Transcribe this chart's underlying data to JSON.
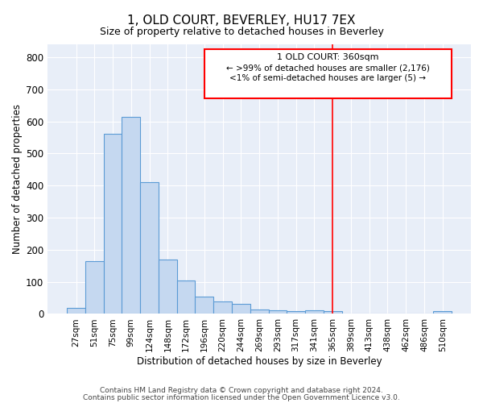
{
  "title": "1, OLD COURT, BEVERLEY, HU17 7EX",
  "subtitle": "Size of property relative to detached houses in Beverley",
  "xlabel": "Distribution of detached houses by size in Beverley",
  "ylabel": "Number of detached properties",
  "bar_color": "#c5d8f0",
  "bar_edge_color": "#5b9bd5",
  "background_color": "#e8eef8",
  "categories": [
    "27sqm",
    "51sqm",
    "75sqm",
    "99sqm",
    "124sqm",
    "148sqm",
    "172sqm",
    "196sqm",
    "220sqm",
    "244sqm",
    "269sqm",
    "293sqm",
    "317sqm",
    "341sqm",
    "365sqm",
    "389sqm",
    "413sqm",
    "438sqm",
    "462sqm",
    "486sqm",
    "510sqm"
  ],
  "values": [
    18,
    165,
    560,
    615,
    410,
    170,
    103,
    53,
    40,
    31,
    13,
    11,
    8,
    10,
    8,
    0,
    0,
    0,
    0,
    0,
    8
  ],
  "ylim": [
    0,
    840
  ],
  "yticks": [
    0,
    100,
    200,
    300,
    400,
    500,
    600,
    700,
    800
  ],
  "red_line_x": 14,
  "annotation_title": "1 OLD COURT: 360sqm",
  "annotation_line1": "← >99% of detached houses are smaller (2,176)",
  "annotation_line2": "<1% of semi-detached houses are larger (5) →",
  "footer_line1": "Contains HM Land Registry data © Crown copyright and database right 2024.",
  "footer_line2": "Contains public sector information licensed under the Open Government Licence v3.0."
}
